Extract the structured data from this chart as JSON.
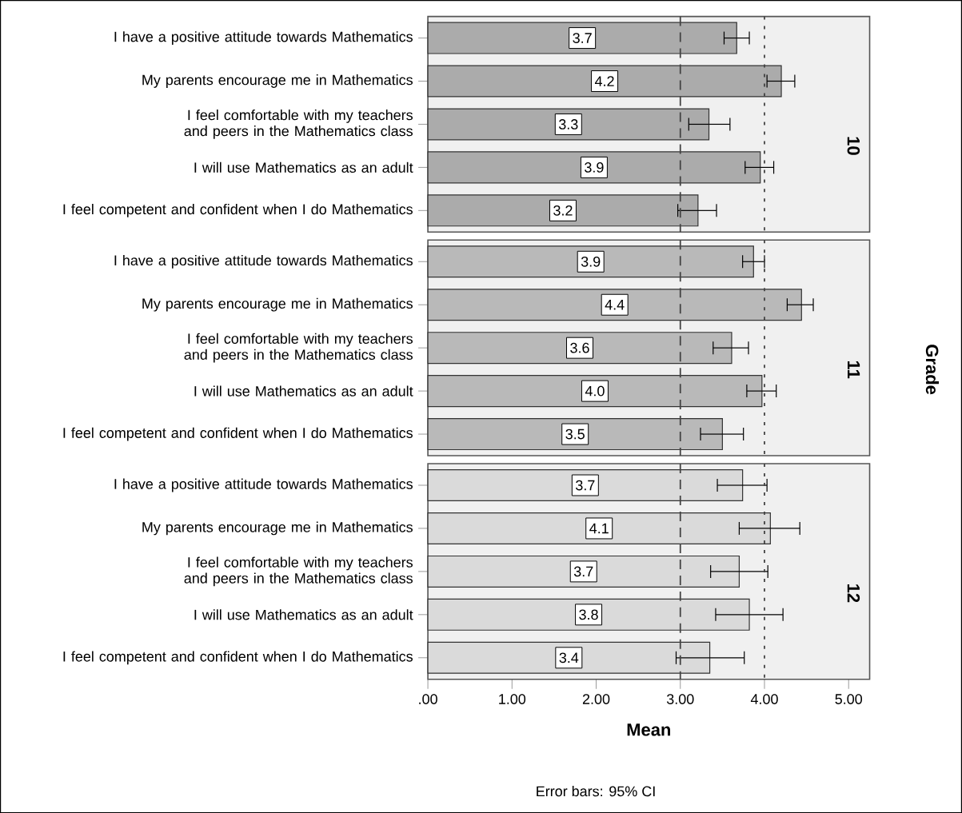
{
  "chart_data": [
    {
      "type": "bar",
      "orientation": "horizontal",
      "title": "10",
      "categories": [
        "I have a positive attitude towards Mathematics",
        "My parents encourage me in Mathematics",
        "I feel comfortable with my teachers and peers in the Mathematics class",
        "I will use Mathematics as an adult",
        "I feel competent and confident when I do Mathematics"
      ],
      "values": [
        3.67,
        4.2,
        3.34,
        3.95,
        3.21
      ],
      "errors": [
        [
          3.52,
          3.82
        ],
        [
          4.03,
          4.36
        ],
        [
          3.1,
          3.59
        ],
        [
          3.77,
          4.11
        ],
        [
          2.97,
          3.43
        ]
      ],
      "value_labels": [
        "3.7",
        "4.2",
        "3.3",
        "3.9",
        "3.2"
      ],
      "color": "#ababab",
      "xlim": [
        0,
        5.25
      ],
      "tick_labels": "y",
      "ref_lines": [
        {
          "axis": "x",
          "value": 3,
          "line_style": "dashed"
        },
        {
          "axis": "x",
          "value": 4,
          "line_style": "dotted"
        }
      ]
    },
    {
      "type": "bar",
      "orientation": "horizontal",
      "title": "11",
      "y2label": "Grade",
      "categories": [
        "I have a positive attitude towards Mathematics",
        "My parents encourage me in Mathematics",
        "I feel comfortable with my teachers and peers in the Mathematics class",
        "I will use Mathematics as an adult",
        "I feel competent and confident when I do Mathematics"
      ],
      "values": [
        3.87,
        4.44,
        3.61,
        3.97,
        3.5
      ],
      "errors": [
        [
          3.74,
          4.0
        ],
        [
          4.27,
          4.58
        ],
        [
          3.39,
          3.81
        ],
        [
          3.79,
          4.14
        ],
        [
          3.24,
          3.75
        ]
      ],
      "value_labels": [
        "3.9",
        "4.4",
        "3.6",
        "4.0",
        "3.5"
      ],
      "color": "#b9b9b9",
      "xlim": [
        0,
        5.25
      ],
      "tick_labels": "y",
      "ref_lines": [
        {
          "axis": "x",
          "value": 3,
          "line_style": "dashed"
        },
        {
          "axis": "x",
          "value": 4,
          "line_style": "dotted"
        }
      ]
    },
    {
      "type": "bar",
      "orientation": "horizontal",
      "title": "12",
      "xlabel": "Mean",
      "annotations": [
        "Error bars: 95% CI"
      ],
      "categories": [
        "I have a positive attitude towards Mathematics",
        "My parents encourage me in Mathematics",
        "I feel comfortable with my teachers and peers in the Mathematics class",
        "I will use Mathematics as an adult",
        "I feel competent and confident when I do Mathematics"
      ],
      "values": [
        3.74,
        4.07,
        3.7,
        3.82,
        3.35
      ],
      "errors": [
        [
          3.44,
          4.03
        ],
        [
          3.7,
          4.42
        ],
        [
          3.36,
          4.04
        ],
        [
          3.42,
          4.22
        ],
        [
          2.95,
          3.76
        ]
      ],
      "value_labels": [
        "3.7",
        "4.1",
        "3.7",
        "3.8",
        "3.4"
      ],
      "color": "#dadada",
      "xlim": [
        0,
        5.25
      ],
      "xticks": [
        {
          "value": 0,
          "label": ".00"
        },
        {
          "value": 1,
          "label": "1.00"
        },
        {
          "value": 2,
          "label": "2.00"
        },
        {
          "value": 3,
          "label": "3.00"
        },
        {
          "value": 4,
          "label": "4.00"
        },
        {
          "value": 5,
          "label": "5.00"
        }
      ],
      "ref_lines": [
        {
          "axis": "x",
          "value": 3,
          "line_style": "dashed"
        },
        {
          "axis": "x",
          "value": 4,
          "line_style": "dotted"
        }
      ]
    }
  ]
}
